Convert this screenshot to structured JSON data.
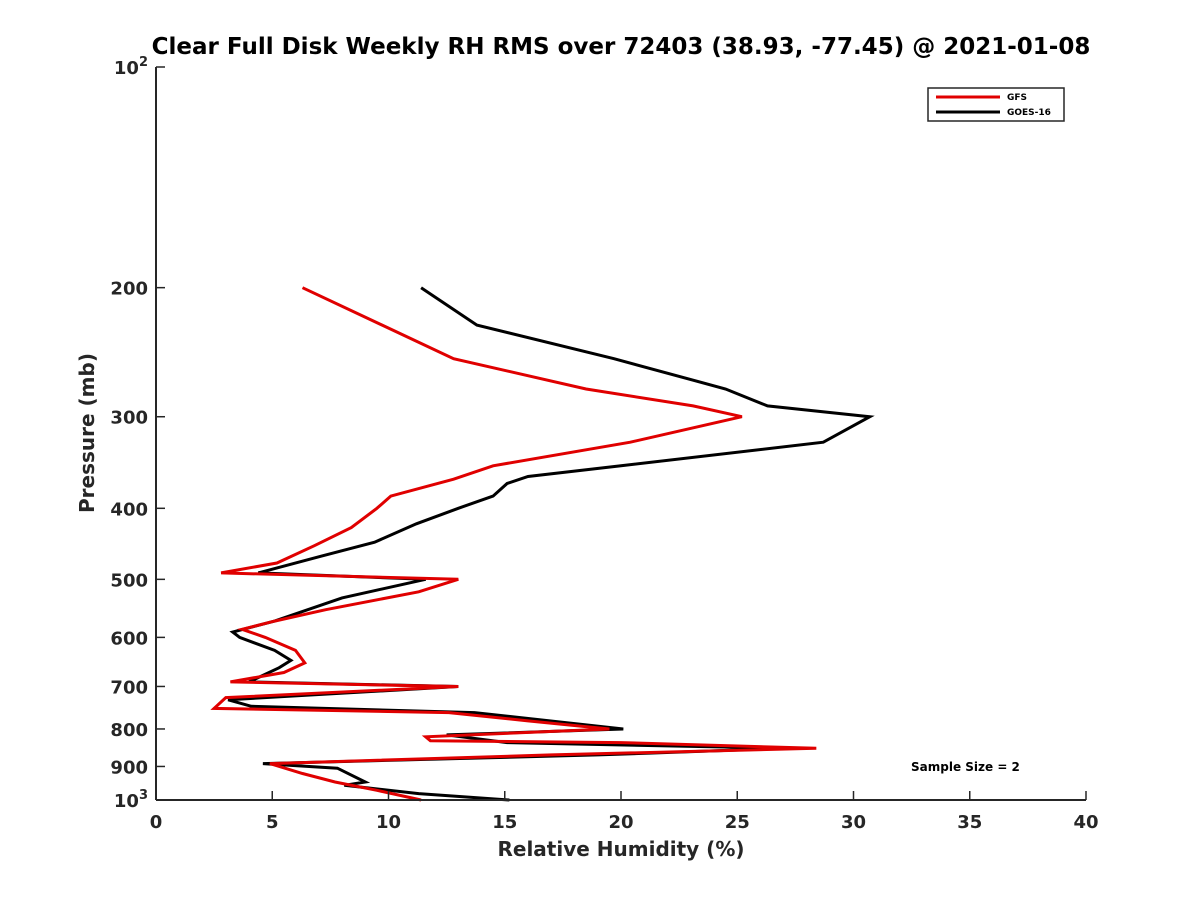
{
  "chart_data": {
    "type": "line",
    "title": "Clear Full Disk Weekly RH RMS over 72403 (38.93, -77.45) @ 2021-01-08",
    "xlabel": "Relative Humidity (%)",
    "ylabel": "Pressure (mb)",
    "xlim": [
      0,
      40
    ],
    "ylim": [
      100,
      1000
    ],
    "y_scale": "log",
    "y_reversed": true,
    "grid": false,
    "legend_position": "top-right",
    "x_ticks": [
      "0",
      "5",
      "10",
      "15",
      "20",
      "25",
      "30",
      "35",
      "40"
    ],
    "y_ticks": [
      {
        "value": 100,
        "base": "10",
        "exp": "2"
      },
      {
        "value": 200,
        "base": "200",
        "exp": ""
      },
      {
        "value": 300,
        "base": "300",
        "exp": ""
      },
      {
        "value": 400,
        "base": "400",
        "exp": ""
      },
      {
        "value": 500,
        "base": "500",
        "exp": ""
      },
      {
        "value": 600,
        "base": "600",
        "exp": ""
      },
      {
        "value": 700,
        "base": "700",
        "exp": ""
      },
      {
        "value": 800,
        "base": "800",
        "exp": ""
      },
      {
        "value": 900,
        "base": "900",
        "exp": ""
      },
      {
        "value": 1000,
        "base": "10",
        "exp": "3"
      }
    ],
    "annotation": "Sample Size = 2",
    "series": [
      {
        "name": "GFS",
        "color": "#e00000",
        "points": [
          [
            6.3,
            200
          ],
          [
            12.8,
            250
          ],
          [
            18.5,
            275
          ],
          [
            23.1,
            290
          ],
          [
            25.2,
            300
          ],
          [
            20.4,
            325
          ],
          [
            14.5,
            350
          ],
          [
            12.8,
            365
          ],
          [
            10.1,
            385
          ],
          [
            9.5,
            400
          ],
          [
            8.4,
            425
          ],
          [
            6.8,
            450
          ],
          [
            5.2,
            475
          ],
          [
            2.8,
            490
          ],
          [
            13.0,
            500
          ],
          [
            11.3,
            520
          ],
          [
            7.3,
            550
          ],
          [
            5.1,
            570
          ],
          [
            3.7,
            585
          ],
          [
            4.7,
            600
          ],
          [
            6.0,
            625
          ],
          [
            6.4,
            650
          ],
          [
            5.5,
            670
          ],
          [
            3.2,
            690
          ],
          [
            13.0,
            700
          ],
          [
            3.0,
            725
          ],
          [
            2.5,
            750
          ],
          [
            12.6,
            760
          ],
          [
            16.0,
            780
          ],
          [
            19.5,
            800
          ],
          [
            11.6,
            820
          ],
          [
            11.8,
            830
          ],
          [
            20.0,
            835
          ],
          [
            28.4,
            850
          ],
          [
            17.0,
            868
          ],
          [
            4.9,
            892
          ],
          [
            6.3,
            920
          ],
          [
            7.7,
            945
          ],
          [
            9.5,
            970
          ],
          [
            11.4,
            1000
          ]
        ]
      },
      {
        "name": "GOES-16",
        "color": "#000000",
        "points": [
          [
            11.4,
            200
          ],
          [
            13.8,
            225
          ],
          [
            19.7,
            250
          ],
          [
            24.5,
            275
          ],
          [
            26.3,
            290
          ],
          [
            30.7,
            300
          ],
          [
            28.7,
            325
          ],
          [
            20.0,
            350
          ],
          [
            16.0,
            362
          ],
          [
            15.1,
            370
          ],
          [
            14.5,
            385
          ],
          [
            13.0,
            400
          ],
          [
            11.2,
            420
          ],
          [
            9.4,
            445
          ],
          [
            7.1,
            465
          ],
          [
            4.4,
            490
          ],
          [
            11.6,
            500
          ],
          [
            8.0,
            530
          ],
          [
            5.1,
            570
          ],
          [
            3.3,
            590
          ],
          [
            3.6,
            600
          ],
          [
            5.1,
            625
          ],
          [
            5.8,
            645
          ],
          [
            5.3,
            660
          ],
          [
            4.0,
            690
          ],
          [
            13.0,
            700
          ],
          [
            3.1,
            730
          ],
          [
            4.1,
            745
          ],
          [
            13.7,
            760
          ],
          [
            20.1,
            800
          ],
          [
            12.5,
            815
          ],
          [
            15.1,
            835
          ],
          [
            27.2,
            850
          ],
          [
            19.0,
            868
          ],
          [
            4.6,
            892
          ],
          [
            7.8,
            905
          ],
          [
            9.0,
            945
          ],
          [
            8.1,
            955
          ],
          [
            11.3,
            980
          ],
          [
            15.2,
            1000
          ]
        ]
      }
    ]
  }
}
